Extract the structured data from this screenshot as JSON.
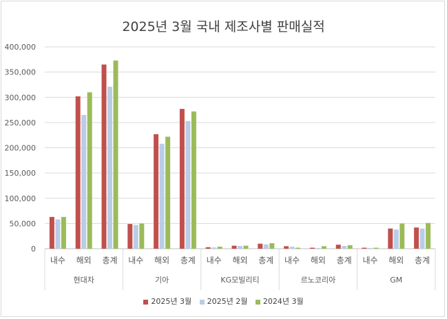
{
  "chart_data": {
    "type": "bar",
    "title": "2025년 3월 국내 제조사별 판매실적",
    "groups": [
      {
        "name": "현대차",
        "categories": [
          "내수",
          "해외",
          "총계"
        ]
      },
      {
        "name": "기아",
        "categories": [
          "내수",
          "해외",
          "총계"
        ]
      },
      {
        "name": "KG모빌리티",
        "categories": [
          "내수",
          "해외",
          "총계"
        ]
      },
      {
        "name": "르노코리아",
        "categories": [
          "내수",
          "해외",
          "총계"
        ]
      },
      {
        "name": "GM",
        "categories": [
          "내수",
          "해외",
          "총계"
        ]
      }
    ],
    "series": [
      {
        "name": "2025년 3월",
        "color": "#c0504d",
        "values": [
          63000,
          302000,
          365000,
          49000,
          227000,
          277000,
          3000,
          6000,
          10000,
          5000,
          2000,
          8000,
          2000,
          40000,
          42000
        ]
      },
      {
        "name": "2025년 2월",
        "color": "#b9cde5",
        "values": [
          58000,
          265000,
          321000,
          47000,
          208000,
          253000,
          2500,
          5500,
          8500,
          4000,
          1500,
          5500,
          1500,
          38000,
          40000
        ]
      },
      {
        "name": "2024년 3월",
        "color": "#9bbb59",
        "values": [
          63000,
          310000,
          373000,
          50000,
          222000,
          272000,
          4000,
          6000,
          11000,
          2000,
          5000,
          7000,
          2000,
          50000,
          51000
        ]
      }
    ],
    "yticks": [
      "0",
      "50,000",
      "100,000",
      "150,000",
      "200,000",
      "250,000",
      "300,000",
      "350,000",
      "400,000"
    ],
    "ylim": [
      0,
      400000
    ],
    "grid": true,
    "legend_position": "bottom"
  }
}
